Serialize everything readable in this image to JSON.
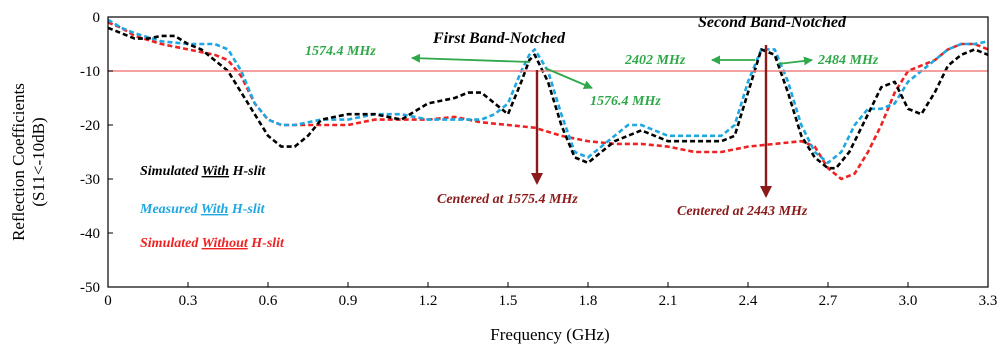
{
  "chart_data": {
    "type": "line",
    "xlabel": "Frequency (GHz)",
    "ylabel_line1": "Reflection Coefficients",
    "ylabel_line2": "(S11<-10dB)",
    "xlim": [
      0,
      3.3
    ],
    "ylim": [
      -50,
      0
    ],
    "x_ticks": [
      0,
      0.3,
      0.6,
      0.9,
      1.2,
      1.5,
      1.8,
      2.1,
      2.4,
      2.7,
      3.0,
      3.3
    ],
    "x_tick_labels": [
      "0",
      "0.3",
      "0.6",
      "0.9",
      "1.2",
      "1.5",
      "1.8",
      "2.1",
      "2.4",
      "2.7",
      "3.0",
      "3.3"
    ],
    "y_ticks": [
      0,
      -10,
      -20,
      -30,
      -40,
      -50
    ],
    "y_tick_labels": [
      "0",
      "-10",
      "-20",
      "-30",
      "-40",
      "-50"
    ],
    "threshold": {
      "y": -10,
      "color": "#f08080"
    },
    "grid": false,
    "legend_position": "left",
    "series": [
      {
        "name": "Simulated With H-slit",
        "legend_prefix": "Simulated ",
        "legend_underlined": "With",
        "legend_suffix": " H-slit",
        "color": "#000000",
        "x": [
          0,
          0.05,
          0.1,
          0.15,
          0.2,
          0.25,
          0.3,
          0.35,
          0.4,
          0.45,
          0.5,
          0.55,
          0.6,
          0.65,
          0.7,
          0.75,
          0.8,
          0.9,
          1.0,
          1.1,
          1.2,
          1.3,
          1.35,
          1.4,
          1.45,
          1.5,
          1.55,
          1.58,
          1.6,
          1.65,
          1.7,
          1.75,
          1.8,
          1.85,
          1.9,
          1.95,
          2.0,
          2.05,
          2.1,
          2.2,
          2.3,
          2.35,
          2.4,
          2.45,
          2.5,
          2.55,
          2.6,
          2.65,
          2.7,
          2.73,
          2.78,
          2.85,
          2.9,
          2.95,
          3.0,
          3.05,
          3.1,
          3.15,
          3.2,
          3.25,
          3.3
        ],
        "values": [
          -2,
          -3,
          -4,
          -4,
          -3.5,
          -3.5,
          -5,
          -6,
          -8,
          -10,
          -14,
          -18,
          -22,
          -24,
          -24,
          -22,
          -19,
          -18,
          -18,
          -19,
          -16,
          -15,
          -14,
          -14,
          -16,
          -18,
          -12,
          -8,
          -7,
          -12,
          -20,
          -26,
          -27,
          -25,
          -23,
          -22,
          -21,
          -22,
          -23,
          -23,
          -23,
          -22,
          -14,
          -6,
          -7,
          -14,
          -22,
          -26,
          -28,
          -28,
          -25,
          -18,
          -13,
          -12,
          -17,
          -18,
          -14,
          -9,
          -7,
          -6,
          -7
        ]
      },
      {
        "name": "Measured With H-slit",
        "legend_prefix": "Measured ",
        "legend_underlined": "With",
        "legend_suffix": " H-slit",
        "color": "#1ea7e1",
        "x": [
          0,
          0.05,
          0.1,
          0.2,
          0.3,
          0.4,
          0.45,
          0.5,
          0.55,
          0.6,
          0.65,
          0.7,
          0.8,
          0.9,
          1.0,
          1.1,
          1.2,
          1.3,
          1.4,
          1.45,
          1.5,
          1.55,
          1.58,
          1.6,
          1.65,
          1.7,
          1.75,
          1.8,
          1.85,
          1.9,
          1.95,
          2.0,
          2.05,
          2.1,
          2.2,
          2.3,
          2.35,
          2.4,
          2.45,
          2.5,
          2.55,
          2.6,
          2.65,
          2.7,
          2.75,
          2.8,
          2.85,
          2.9,
          2.95,
          3.0,
          3.05,
          3.1,
          3.15,
          3.2,
          3.25,
          3.3
        ],
        "values": [
          -0.5,
          -2,
          -3,
          -4.5,
          -5,
          -5,
          -6,
          -10,
          -16,
          -19,
          -20,
          -20,
          -19,
          -19,
          -18,
          -18,
          -19,
          -19,
          -19,
          -18,
          -16,
          -10,
          -7,
          -6,
          -10,
          -18,
          -25,
          -26,
          -24,
          -22,
          -20,
          -20,
          -21,
          -22,
          -22,
          -22,
          -20,
          -12,
          -6,
          -6,
          -12,
          -20,
          -25,
          -27,
          -25,
          -20,
          -17,
          -17,
          -16,
          -12,
          -10,
          -8,
          -6,
          -5,
          -5,
          -4.5
        ]
      },
      {
        "name": "Simulated Without H-slit",
        "legend_prefix": "Simulated ",
        "legend_underlined": "Without",
        "legend_suffix": " H-slit",
        "color": "#ee2222",
        "x": [
          0,
          0.05,
          0.1,
          0.2,
          0.3,
          0.4,
          0.45,
          0.5,
          0.55,
          0.6,
          0.65,
          0.7,
          0.8,
          0.9,
          1.0,
          1.1,
          1.2,
          1.3,
          1.4,
          1.5,
          1.6,
          1.7,
          1.8,
          1.9,
          2.0,
          2.1,
          2.2,
          2.3,
          2.4,
          2.5,
          2.6,
          2.65,
          2.7,
          2.75,
          2.8,
          2.85,
          2.9,
          2.95,
          3.0,
          3.05,
          3.1,
          3.15,
          3.2,
          3.25,
          3.3
        ],
        "values": [
          -1,
          -2,
          -3.5,
          -5,
          -6,
          -7,
          -8,
          -11,
          -16,
          -19,
          -20,
          -20,
          -20,
          -20,
          -19,
          -19,
          -19,
          -18.5,
          -19.5,
          -20,
          -20.5,
          -22,
          -23,
          -23.5,
          -23.5,
          -24,
          -25,
          -25,
          -24,
          -23.5,
          -23,
          -24,
          -28,
          -30,
          -29,
          -25,
          -20,
          -14,
          -10,
          -9,
          -8,
          -6,
          -5,
          -5,
          -6
        ]
      }
    ],
    "annotations": {
      "first_title": "First Band-Notched",
      "second_title": "Second Band-Notched",
      "f1_low": "1574.4 MHz",
      "f1_high": "1576.4 MHz",
      "f2_low": "2402 MHz",
      "f2_high": "2484 MHz",
      "center1": "Centered at 1575.4 MHz",
      "center2": "Centered at 2443 MHz",
      "green": "#2fa84a",
      "maroon": "#8b1a1a"
    }
  }
}
